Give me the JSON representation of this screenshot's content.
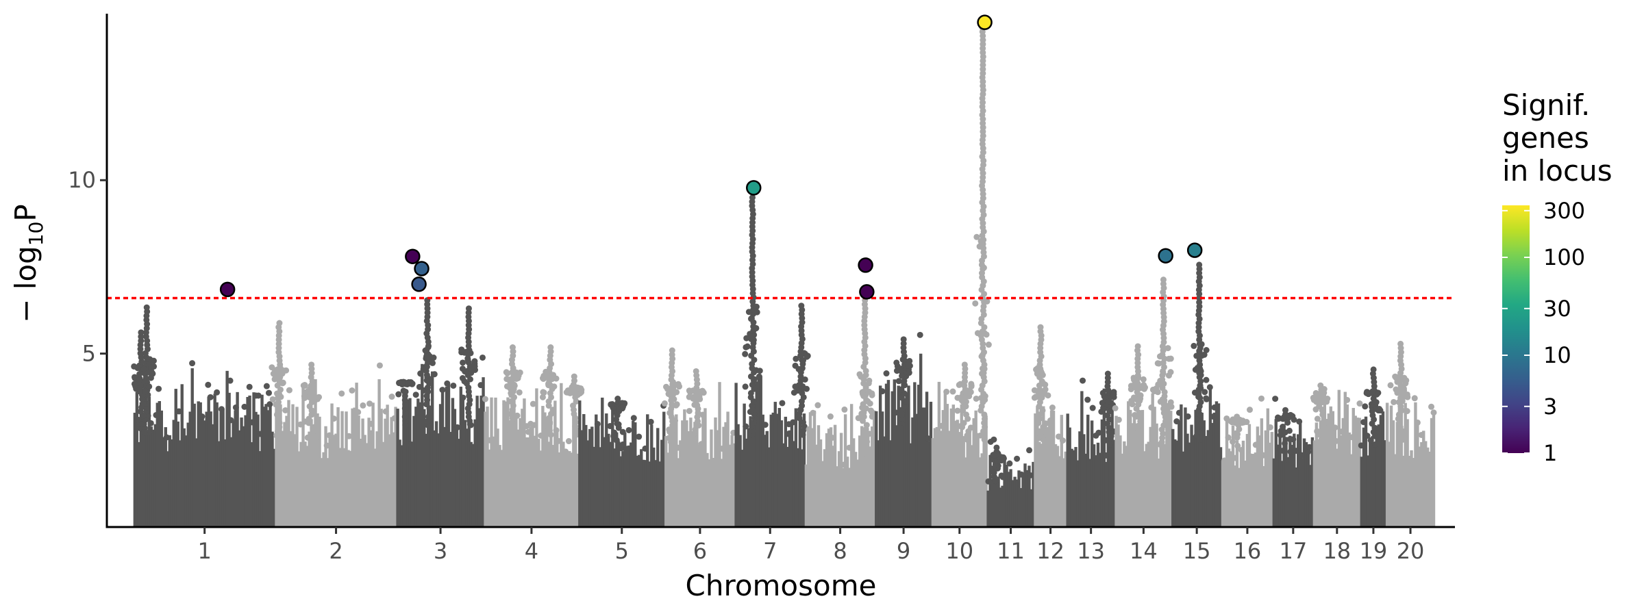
{
  "chart_data": {
    "type": "scatter",
    "subtype": "manhattan",
    "xlabel": "Chromosome",
    "ylabel_main": "− log",
    "ylabel_sub": "10",
    "ylabel_tail": "P",
    "ylim": [
      0,
      14.8
    ],
    "y_ticks": [
      5,
      10
    ],
    "threshold": 6.6,
    "threshold_color": "#ff0000",
    "grid": false,
    "colors": {
      "dark": "#555555",
      "light": "#aaaaaa"
    },
    "chromosomes": [
      {
        "label": "1",
        "start": 0.02,
        "end": 0.125,
        "base": 3.9,
        "peaks": [
          [
            0.09,
            6.4
          ],
          [
            0.05,
            5.7
          ]
        ]
      },
      {
        "label": "2",
        "start": 0.125,
        "end": 0.215,
        "base": 3.6,
        "peaks": [
          [
            0.03,
            5.9
          ],
          [
            0.3,
            4.8
          ]
        ]
      },
      {
        "label": "3",
        "start": 0.215,
        "end": 0.28,
        "base": 4.2,
        "peaks": [
          [
            0.35,
            6.6
          ],
          [
            0.82,
            6.4
          ],
          [
            0.1,
            4.0
          ]
        ]
      },
      {
        "label": "4",
        "start": 0.28,
        "end": 0.35,
        "base": 3.8,
        "peaks": [
          [
            0.3,
            5.3
          ],
          [
            0.7,
            5.3
          ],
          [
            0.95,
            4.4
          ]
        ]
      },
      {
        "label": "5",
        "start": 0.35,
        "end": 0.414,
        "base": 3.4,
        "peaks": [
          [
            0.45,
            3.8
          ]
        ]
      },
      {
        "label": "6",
        "start": 0.414,
        "end": 0.466,
        "base": 3.5,
        "peaks": [
          [
            0.1,
            5.1
          ],
          [
            0.45,
            4.6
          ]
        ]
      },
      {
        "label": "7",
        "start": 0.466,
        "end": 0.518,
        "base": 3.8,
        "peaks": [
          [
            0.25,
            9.5
          ],
          [
            0.95,
            6.5
          ]
        ]
      },
      {
        "label": "8",
        "start": 0.518,
        "end": 0.57,
        "base": 3.0,
        "peaks": [
          [
            0.85,
            6.6
          ]
        ]
      },
      {
        "label": "9",
        "start": 0.57,
        "end": 0.612,
        "base": 4.3,
        "peaks": [
          [
            0.5,
            5.5
          ]
        ]
      },
      {
        "label": "10",
        "start": 0.612,
        "end": 0.653,
        "base": 3.6,
        "peaks": [
          [
            0.6,
            4.8
          ],
          [
            0.92,
            14.4
          ]
        ]
      },
      {
        "label": "11",
        "start": 0.653,
        "end": 0.688,
        "base": 1.9,
        "peaks": [
          [
            0.2,
            2.4
          ]
        ]
      },
      {
        "label": "12",
        "start": 0.688,
        "end": 0.712,
        "base": 3.6,
        "peaks": [
          [
            0.2,
            5.8
          ]
        ]
      },
      {
        "label": "13",
        "start": 0.712,
        "end": 0.748,
        "base": 3.4,
        "peaks": [
          [
            0.85,
            4.5
          ]
        ]
      },
      {
        "label": "14",
        "start": 0.748,
        "end": 0.79,
        "base": 3.5,
        "peaks": [
          [
            0.85,
            7.2
          ],
          [
            0.4,
            5.3
          ]
        ]
      },
      {
        "label": "15",
        "start": 0.79,
        "end": 0.827,
        "base": 3.6,
        "peaks": [
          [
            0.55,
            7.6
          ]
        ]
      },
      {
        "label": "16",
        "start": 0.827,
        "end": 0.865,
        "base": 3.0,
        "peaks": [
          [
            0.3,
            3.3
          ]
        ]
      },
      {
        "label": "17",
        "start": 0.865,
        "end": 0.895,
        "base": 3.1,
        "peaks": [
          [
            0.3,
            3.4
          ]
        ]
      },
      {
        "label": "18",
        "start": 0.895,
        "end": 0.93,
        "base": 3.6,
        "peaks": [
          [
            0.15,
            4.2
          ]
        ]
      },
      {
        "label": "19",
        "start": 0.93,
        "end": 0.949,
        "base": 3.4,
        "peaks": [
          [
            0.5,
            4.6
          ]
        ]
      },
      {
        "label": "20",
        "start": 0.949,
        "end": 0.985,
        "base": 3.6,
        "peaks": [
          [
            0.3,
            5.4
          ]
        ]
      }
    ],
    "lead_snps": [
      {
        "x": 0.0895,
        "y": 6.85,
        "genes": 1
      },
      {
        "x": 0.2268,
        "y": 7.8,
        "genes": 1
      },
      {
        "x": 0.2335,
        "y": 7.45,
        "genes": 6
      },
      {
        "x": 0.2315,
        "y": 7.0,
        "genes": 5
      },
      {
        "x": 0.4798,
        "y": 9.78,
        "genes": 25
      },
      {
        "x": 0.5628,
        "y": 7.55,
        "genes": 1
      },
      {
        "x": 0.5637,
        "y": 6.78,
        "genes": 1
      },
      {
        "x": 0.6512,
        "y": 14.55,
        "genes": 340
      },
      {
        "x": 0.7854,
        "y": 7.82,
        "genes": 9
      },
      {
        "x": 0.807,
        "y": 7.98,
        "genes": 12
      }
    ],
    "legend": {
      "title": [
        "Signif.",
        "genes",
        "in locus"
      ],
      "ticks": [
        {
          "label": "300",
          "value": 300
        },
        {
          "label": "100",
          "value": 100
        },
        {
          "label": "30",
          "value": 30
        },
        {
          "label": "10",
          "value": 10
        },
        {
          "label": "3",
          "value": 3
        },
        {
          "label": "1",
          "value": 1
        }
      ],
      "scale": "log",
      "range": [
        1,
        340
      ]
    },
    "viridis": [
      "#440154",
      "#482475",
      "#414487",
      "#355f8d",
      "#2a788e",
      "#21918c",
      "#22a884",
      "#44bf70",
      "#7ad151",
      "#bddf26",
      "#fde725"
    ]
  }
}
